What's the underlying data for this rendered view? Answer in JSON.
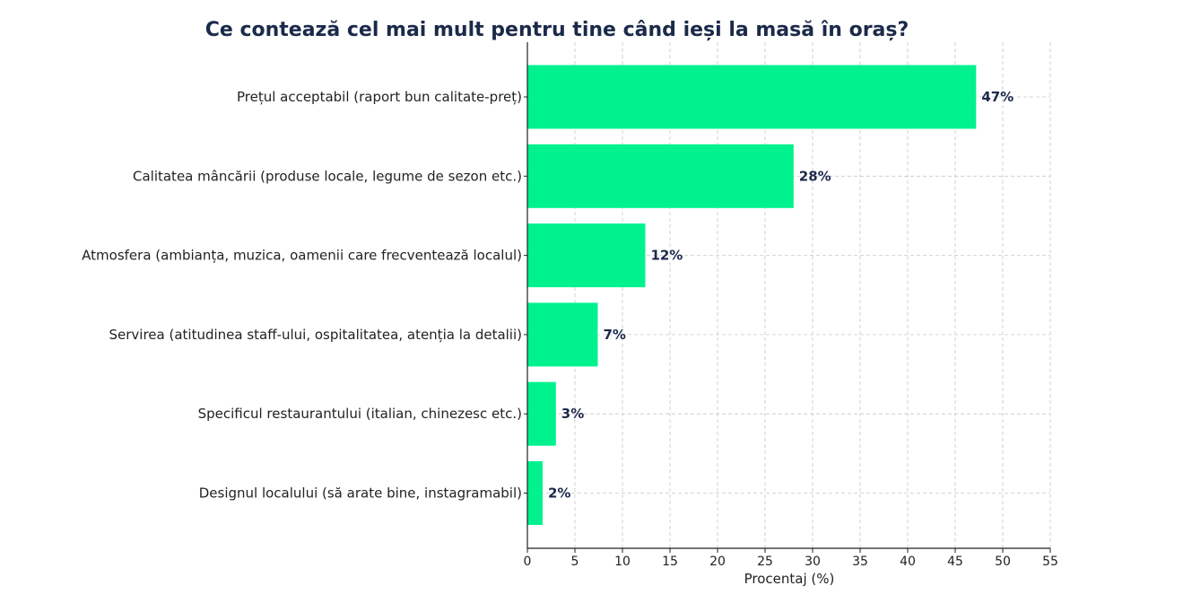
{
  "chart_data": {
    "type": "bar",
    "orientation": "horizontal",
    "title": "Ce contează cel mai mult pentru tine când ieși la masă în oraș?",
    "xlabel": "Procentaj (%)",
    "ylabel": "",
    "xlim": [
      0,
      55
    ],
    "xticks": [
      "0",
      "5",
      "10",
      "15",
      "20",
      "25",
      "30",
      "35",
      "40",
      "45",
      "50",
      "55"
    ],
    "grid": true,
    "categories": [
      "Prețul acceptabil (raport bun calitate-preț)",
      "Calitatea mâncării (produse locale, legume de sezon etc.)",
      "Atmosfera (ambianța, muzica, oamenii care frecventează localul)",
      "Servirea (atitudinea staff-ului, ospitalitatea, atenția la detalii)",
      "Specificul restaurantului (italian, chinezesc etc.)",
      "Designul localului (să arate bine, instagramabil)"
    ],
    "values": [
      47.2,
      28.0,
      12.4,
      7.4,
      3.0,
      1.6
    ],
    "value_labels": [
      "47%",
      "28%",
      "12%",
      "7%",
      "3%",
      "2%"
    ],
    "colors": {
      "bar": "#00F28E",
      "title": "#1B2A4A",
      "data_label": "#1B2A4A",
      "axis": "#222222"
    }
  }
}
